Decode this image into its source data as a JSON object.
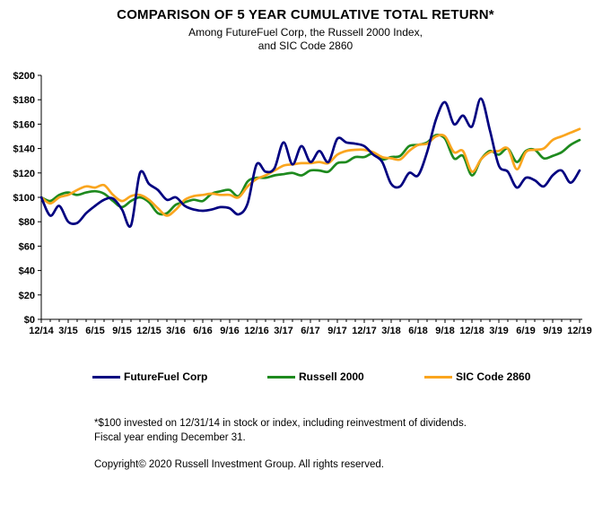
{
  "chart_data": {
    "type": "line",
    "title": "COMPARISON OF 5 YEAR CUMULATIVE TOTAL RETURN*",
    "subtitle1": "Among FutureFuel Corp, the Russell 2000 Index,",
    "subtitle2": "and SIC Code 2860",
    "grid": false,
    "legend_position": "bottom",
    "ylim": [
      0,
      200
    ],
    "y_tick_step": 20,
    "y_tick_labels": [
      "$0",
      "$20",
      "$40",
      "$60",
      "$80",
      "$100",
      "$120",
      "$140",
      "$160",
      "$180",
      "$200"
    ],
    "points_per_label": 3,
    "x_tick_labels": [
      "12/14",
      "3/15",
      "6/15",
      "9/15",
      "12/15",
      "3/16",
      "6/16",
      "9/16",
      "12/16",
      "3/17",
      "6/17",
      "9/17",
      "12/17",
      "3/18",
      "6/18",
      "9/18",
      "12/18",
      "3/19",
      "6/19",
      "9/19",
      "12/19"
    ],
    "x_frequency": "monthly",
    "series": [
      {
        "name": "FutureFuel Corp",
        "color": "#000080",
        "values": [
          100,
          85,
          93,
          80,
          79,
          87,
          93,
          98,
          99,
          90,
          77,
          120,
          111,
          106,
          98,
          100,
          93,
          90,
          89,
          90,
          92,
          91,
          86,
          95,
          127,
          121,
          124,
          145,
          127,
          142,
          129,
          138,
          129,
          148,
          145,
          144,
          142,
          135,
          129,
          111,
          109,
          120,
          118,
          137,
          164,
          178,
          160,
          167,
          158,
          181,
          155,
          126,
          121,
          108,
          116,
          114,
          109,
          118,
          122,
          112,
          122
        ]
      },
      {
        "name": "Russell 2000",
        "color": "#1E8A1E",
        "values": [
          100,
          97,
          102,
          104,
          102,
          104,
          105,
          103,
          97,
          92,
          97,
          100,
          96,
          87,
          87,
          94,
          96,
          98,
          97,
          103,
          105,
          106,
          101,
          113,
          116,
          116,
          118,
          119,
          120,
          118,
          122,
          122,
          121,
          128,
          129,
          133,
          133,
          136,
          131,
          133,
          134,
          142,
          143,
          145,
          151,
          148,
          132,
          134,
          118,
          131,
          138,
          135,
          140,
          129,
          138,
          139,
          132,
          134,
          137,
          143,
          147
        ]
      },
      {
        "name": "SIC Code 2860",
        "color": "#FAA51E",
        "values": [
          100,
          95,
          100,
          102,
          106,
          109,
          108,
          110,
          102,
          97,
          101,
          102,
          98,
          91,
          85,
          90,
          98,
          101,
          102,
          103,
          102,
          102,
          100,
          109,
          115,
          118,
          122,
          126,
          127,
          128,
          128,
          129,
          128,
          135,
          138,
          139,
          139,
          137,
          133,
          132,
          131,
          138,
          143,
          144,
          150,
          150,
          137,
          138,
          121,
          131,
          137,
          138,
          140,
          123,
          137,
          139,
          140,
          147,
          150,
          153,
          156
        ]
      }
    ]
  },
  "footnotes": {
    "line1": "*$100 invested on 12/31/14 in stock or index, including reinvestment of dividends.",
    "line2": "Fiscal year ending December 31.",
    "copyright": "Copyright© 2020 Russell Investment Group. All rights reserved."
  }
}
